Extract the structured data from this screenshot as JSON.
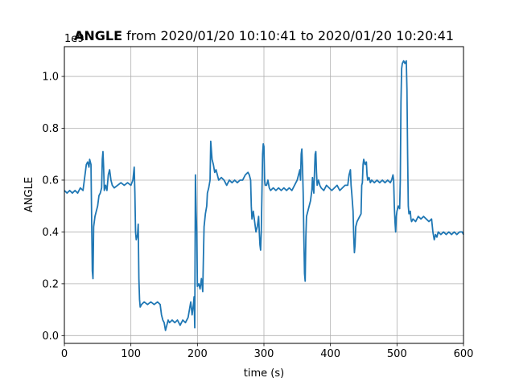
{
  "chart_data": {
    "type": "line",
    "title_bold": "ANGLE",
    "title_rest": " from 2020/01/20 10:10:41 to 2020/01/20 10:20:41",
    "xlabel": "time (s)",
    "ylabel": "ANGLE",
    "y_offset_text": "1e9",
    "xlim": [
      0,
      600
    ],
    "ylim": [
      -0.03,
      1.115
    ],
    "x_ticks": [
      0,
      100,
      200,
      300,
      400,
      500,
      600
    ],
    "x_tick_labels": [
      "0",
      "100",
      "200",
      "300",
      "400",
      "500",
      "600"
    ],
    "y_ticks": [
      0.0,
      0.2,
      0.4,
      0.6,
      0.8,
      1.0
    ],
    "y_tick_labels": [
      "0.0",
      "0.2",
      "0.4",
      "0.6",
      "0.8",
      "1.0"
    ],
    "grid": true,
    "series": [
      {
        "color": "#1f77b4",
        "points": [
          [
            0,
            0.56
          ],
          [
            4,
            0.55
          ],
          [
            8,
            0.56
          ],
          [
            12,
            0.55
          ],
          [
            16,
            0.56
          ],
          [
            20,
            0.55
          ],
          [
            24,
            0.57
          ],
          [
            28,
            0.56
          ],
          [
            30,
            0.6
          ],
          [
            33,
            0.66
          ],
          [
            35,
            0.67
          ],
          [
            37,
            0.65
          ],
          [
            38,
            0.68
          ],
          [
            40,
            0.66
          ],
          [
            41,
            0.45
          ],
          [
            42,
            0.25
          ],
          [
            43,
            0.22
          ],
          [
            44,
            0.42
          ],
          [
            46,
            0.46
          ],
          [
            48,
            0.48
          ],
          [
            50,
            0.5
          ],
          [
            52,
            0.54
          ],
          [
            54,
            0.55
          ],
          [
            56,
            0.57
          ],
          [
            57,
            0.68
          ],
          [
            58,
            0.71
          ],
          [
            59,
            0.65
          ],
          [
            60,
            0.56
          ],
          [
            62,
            0.58
          ],
          [
            64,
            0.56
          ],
          [
            66,
            0.62
          ],
          [
            68,
            0.64
          ],
          [
            70,
            0.6
          ],
          [
            72,
            0.58
          ],
          [
            75,
            0.57
          ],
          [
            80,
            0.58
          ],
          [
            85,
            0.59
          ],
          [
            90,
            0.58
          ],
          [
            95,
            0.59
          ],
          [
            100,
            0.58
          ],
          [
            103,
            0.6
          ],
          [
            105,
            0.65
          ],
          [
            106,
            0.55
          ],
          [
            107,
            0.4
          ],
          [
            108,
            0.37
          ],
          [
            110,
            0.39
          ],
          [
            111,
            0.43
          ],
          [
            112,
            0.22
          ],
          [
            113,
            0.14
          ],
          [
            114,
            0.11
          ],
          [
            116,
            0.12
          ],
          [
            120,
            0.13
          ],
          [
            125,
            0.12
          ],
          [
            130,
            0.13
          ],
          [
            135,
            0.12
          ],
          [
            140,
            0.13
          ],
          [
            144,
            0.12
          ],
          [
            146,
            0.08
          ],
          [
            148,
            0.06
          ],
          [
            150,
            0.05
          ],
          [
            152,
            0.02
          ],
          [
            154,
            0.04
          ],
          [
            156,
            0.06
          ],
          [
            158,
            0.05
          ],
          [
            162,
            0.06
          ],
          [
            166,
            0.05
          ],
          [
            170,
            0.06
          ],
          [
            174,
            0.04
          ],
          [
            178,
            0.06
          ],
          [
            182,
            0.05
          ],
          [
            186,
            0.07
          ],
          [
            188,
            0.1
          ],
          [
            190,
            0.13
          ],
          [
            192,
            0.08
          ],
          [
            194,
            0.12
          ],
          [
            195,
            0.15
          ],
          [
            196,
            0.03
          ],
          [
            197,
            0.62
          ],
          [
            198,
            0.48
          ],
          [
            199,
            0.4
          ],
          [
            200,
            0.19
          ],
          [
            202,
            0.2
          ],
          [
            204,
            0.18
          ],
          [
            206,
            0.22
          ],
          [
            208,
            0.17
          ],
          [
            209,
            0.3
          ],
          [
            210,
            0.42
          ],
          [
            212,
            0.47
          ],
          [
            214,
            0.5
          ],
          [
            215,
            0.55
          ],
          [
            217,
            0.57
          ],
          [
            219,
            0.6
          ],
          [
            220,
            0.75
          ],
          [
            222,
            0.68
          ],
          [
            224,
            0.66
          ],
          [
            226,
            0.63
          ],
          [
            228,
            0.64
          ],
          [
            230,
            0.62
          ],
          [
            232,
            0.6
          ],
          [
            236,
            0.61
          ],
          [
            240,
            0.6
          ],
          [
            244,
            0.58
          ],
          [
            248,
            0.6
          ],
          [
            252,
            0.59
          ],
          [
            256,
            0.6
          ],
          [
            260,
            0.59
          ],
          [
            264,
            0.6
          ],
          [
            268,
            0.6
          ],
          [
            272,
            0.62
          ],
          [
            276,
            0.63
          ],
          [
            278,
            0.62
          ],
          [
            280,
            0.6
          ],
          [
            281,
            0.5
          ],
          [
            282,
            0.45
          ],
          [
            284,
            0.48
          ],
          [
            286,
            0.44
          ],
          [
            288,
            0.4
          ],
          [
            290,
            0.42
          ],
          [
            292,
            0.46
          ],
          [
            293,
            0.4
          ],
          [
            294,
            0.35
          ],
          [
            295,
            0.33
          ],
          [
            296,
            0.4
          ],
          [
            297,
            0.55
          ],
          [
            298,
            0.7
          ],
          [
            299,
            0.74
          ],
          [
            300,
            0.73
          ],
          [
            301,
            0.6
          ],
          [
            302,
            0.58
          ],
          [
            304,
            0.58
          ],
          [
            306,
            0.6
          ],
          [
            308,
            0.57
          ],
          [
            310,
            0.56
          ],
          [
            314,
            0.57
          ],
          [
            318,
            0.56
          ],
          [
            322,
            0.57
          ],
          [
            326,
            0.56
          ],
          [
            330,
            0.57
          ],
          [
            334,
            0.56
          ],
          [
            338,
            0.57
          ],
          [
            342,
            0.56
          ],
          [
            346,
            0.58
          ],
          [
            350,
            0.6
          ],
          [
            352,
            0.62
          ],
          [
            354,
            0.64
          ],
          [
            355,
            0.6
          ],
          [
            356,
            0.7
          ],
          [
            357,
            0.72
          ],
          [
            358,
            0.65
          ],
          [
            359,
            0.55
          ],
          [
            360,
            0.38
          ],
          [
            361,
            0.24
          ],
          [
            362,
            0.21
          ],
          [
            363,
            0.38
          ],
          [
            364,
            0.46
          ],
          [
            366,
            0.48
          ],
          [
            368,
            0.5
          ],
          [
            370,
            0.52
          ],
          [
            372,
            0.56
          ],
          [
            373,
            0.61
          ],
          [
            374,
            0.57
          ],
          [
            375,
            0.55
          ],
          [
            376,
            0.63
          ],
          [
            377,
            0.7
          ],
          [
            378,
            0.71
          ],
          [
            379,
            0.63
          ],
          [
            380,
            0.58
          ],
          [
            382,
            0.6
          ],
          [
            384,
            0.58
          ],
          [
            386,
            0.57
          ],
          [
            390,
            0.56
          ],
          [
            394,
            0.58
          ],
          [
            398,
            0.57
          ],
          [
            402,
            0.56
          ],
          [
            406,
            0.57
          ],
          [
            410,
            0.58
          ],
          [
            414,
            0.56
          ],
          [
            418,
            0.57
          ],
          [
            422,
            0.58
          ],
          [
            426,
            0.58
          ],
          [
            428,
            0.62
          ],
          [
            430,
            0.64
          ],
          [
            431,
            0.58
          ],
          [
            432,
            0.55
          ],
          [
            434,
            0.48
          ],
          [
            435,
            0.38
          ],
          [
            436,
            0.32
          ],
          [
            437,
            0.35
          ],
          [
            438,
            0.42
          ],
          [
            440,
            0.44
          ],
          [
            442,
            0.45
          ],
          [
            444,
            0.46
          ],
          [
            446,
            0.47
          ],
          [
            447,
            0.58
          ],
          [
            448,
            0.59
          ],
          [
            449,
            0.66
          ],
          [
            450,
            0.68
          ],
          [
            452,
            0.66
          ],
          [
            454,
            0.67
          ],
          [
            455,
            0.62
          ],
          [
            456,
            0.6
          ],
          [
            458,
            0.61
          ],
          [
            460,
            0.59
          ],
          [
            462,
            0.6
          ],
          [
            466,
            0.59
          ],
          [
            470,
            0.6
          ],
          [
            474,
            0.59
          ],
          [
            478,
            0.6
          ],
          [
            482,
            0.59
          ],
          [
            486,
            0.6
          ],
          [
            490,
            0.59
          ],
          [
            492,
            0.6
          ],
          [
            494,
            0.62
          ],
          [
            495,
            0.6
          ],
          [
            496,
            0.5
          ],
          [
            497,
            0.44
          ],
          [
            498,
            0.4
          ],
          [
            499,
            0.46
          ],
          [
            500,
            0.48
          ],
          [
            502,
            0.5
          ],
          [
            504,
            0.49
          ],
          [
            505,
            0.6
          ],
          [
            506,
            0.9
          ],
          [
            507,
            1.03
          ],
          [
            508,
            1.05
          ],
          [
            510,
            1.06
          ],
          [
            512,
            1.05
          ],
          [
            514,
            1.06
          ],
          [
            515,
            0.95
          ],
          [
            516,
            0.7
          ],
          [
            517,
            0.5
          ],
          [
            518,
            0.47
          ],
          [
            520,
            0.48
          ],
          [
            521,
            0.45
          ],
          [
            522,
            0.44
          ],
          [
            524,
            0.45
          ],
          [
            528,
            0.44
          ],
          [
            532,
            0.46
          ],
          [
            536,
            0.45
          ],
          [
            540,
            0.46
          ],
          [
            544,
            0.45
          ],
          [
            548,
            0.44
          ],
          [
            552,
            0.45
          ],
          [
            554,
            0.4
          ],
          [
            556,
            0.37
          ],
          [
            558,
            0.39
          ],
          [
            560,
            0.38
          ],
          [
            562,
            0.4
          ],
          [
            566,
            0.39
          ],
          [
            570,
            0.4
          ],
          [
            574,
            0.39
          ],
          [
            578,
            0.4
          ],
          [
            582,
            0.39
          ],
          [
            586,
            0.4
          ],
          [
            590,
            0.39
          ],
          [
            594,
            0.4
          ],
          [
            598,
            0.4
          ],
          [
            600,
            0.39
          ]
        ]
      }
    ]
  }
}
